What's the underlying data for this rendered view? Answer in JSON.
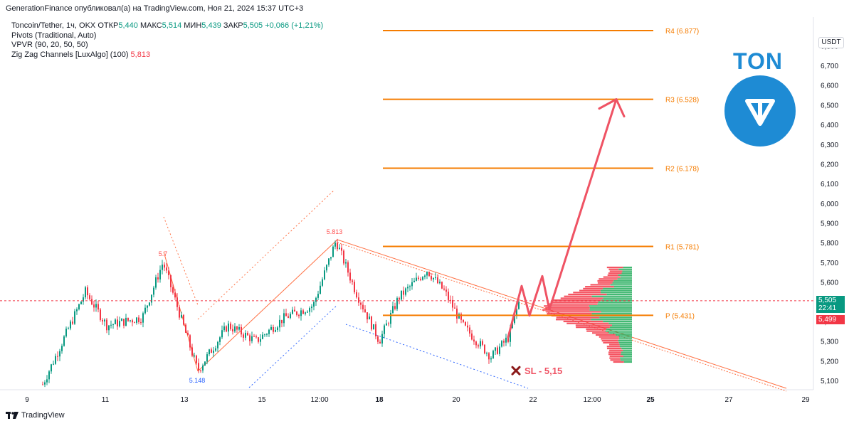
{
  "header": {
    "published_line": "GenerationFinance опубликовал(а) на TradingView.com, Ноя 21, 2024 15:37 UTC+3"
  },
  "legend": {
    "symbol_line": "Toncoin/Tether, 1ч, OKX",
    "open_label": "ОТКР",
    "open_value": "5,440",
    "high_label": "МАКС",
    "high_value": "5,514",
    "low_label": "МИН",
    "low_value": "5,439",
    "close_label": "ЗАКР",
    "close_value": "5,505",
    "change_value": "+0,066 (+1,21%)",
    "indicator_1": "Pivots (Traditional, Auto)",
    "indicator_2": "VPVR (90, 20, 50, 50)",
    "indicator_3": "Zig Zag Channels [LuxAlgo] (100)",
    "indicator_3_value": "5,813"
  },
  "currency": "USDT",
  "price_tags": {
    "last_price": "5,505",
    "countdown": "22:41",
    "second_price": "5,499"
  },
  "branding": {
    "ton_text": "TON",
    "footer": "TradingView"
  },
  "colors": {
    "pivot": "#f57c00",
    "bull": "#089981",
    "bear": "#f23645",
    "forecast_arrow": "#ef5364",
    "ton_blue": "#1e8bd4",
    "zigzag_label": "#ff5252",
    "zigzag_low_label": "#2962ff"
  },
  "chart_data": {
    "type": "candlestick",
    "symbol": "Toncoin/Tether",
    "timeframe": "1ч",
    "ylim": [
      5.06,
      6.94
    ],
    "y_ticks": [
      "5,100",
      "5,200",
      "5,300",
      "5,400",
      "5,500",
      "5,600",
      "5,700",
      "5,800",
      "5,900",
      "6,000",
      "6,100",
      "6,200",
      "6,300",
      "6,400",
      "6,500",
      "6,600",
      "6,700",
      "6,800"
    ],
    "y_tick_values": [
      5.1,
      5.2,
      5.3,
      5.4,
      5.5,
      5.6,
      5.7,
      5.8,
      5.9,
      6.0,
      6.1,
      6.2,
      6.3,
      6.4,
      6.5,
      6.6,
      6.7,
      6.8
    ],
    "x_ticks": [
      "9",
      "11",
      "13",
      "15",
      "12:00",
      "18",
      "20",
      "22",
      "12:00",
      "25",
      "27",
      "29"
    ],
    "x_tick_bold": [
      false,
      false,
      false,
      false,
      false,
      true,
      false,
      false,
      false,
      true,
      false,
      false
    ],
    "pivot_levels": [
      {
        "label": "R4 (6.877)",
        "value": 6.877
      },
      {
        "label": "R3 (6.528)",
        "value": 6.528
      },
      {
        "label": "R2 (6.178)",
        "value": 6.178
      },
      {
        "label": "R1 (5.781)",
        "value": 5.781
      },
      {
        "label": "P (5.431)",
        "value": 5.431
      }
    ],
    "zigzag_labels": [
      {
        "text": "5.7",
        "value": 5.7
      },
      {
        "text": "5.148",
        "value": 5.148
      },
      {
        "text": "5.813",
        "value": 5.813
      }
    ],
    "stop_loss_text": "SL - 5,15",
    "stop_loss_value": 5.15,
    "last_price": 5.505,
    "target_value": 6.528,
    "forecast_path": [
      5.32,
      5.58,
      5.43,
      5.63,
      5.46,
      6.528
    ]
  }
}
